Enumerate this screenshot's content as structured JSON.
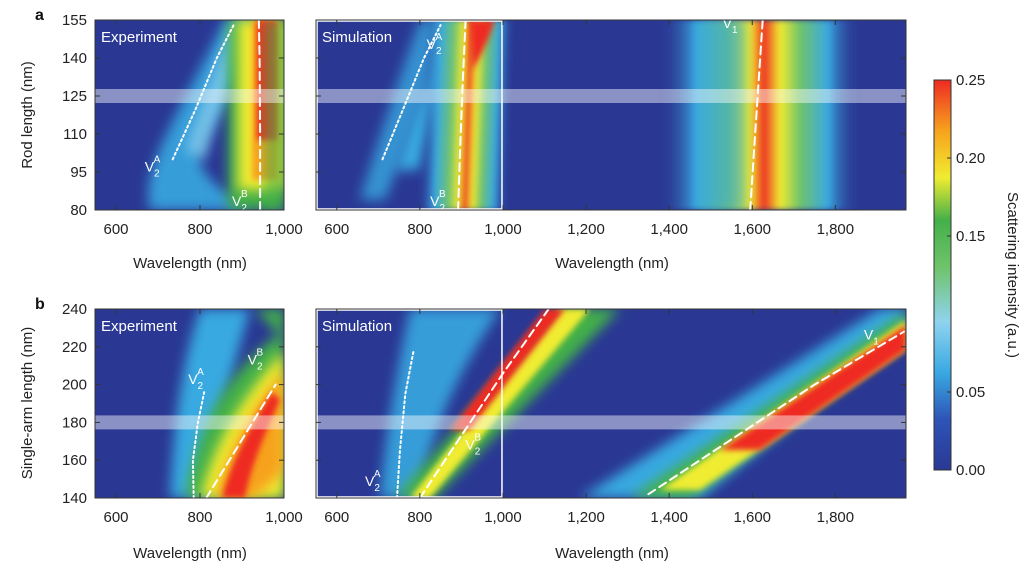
{
  "panels": {
    "a": "a",
    "b": "b"
  },
  "chart_data": [
    {
      "type": "heatmap",
      "panel": "a",
      "title": "Experiment",
      "xlabel": "Wavelength (nm)",
      "ylabel": "Rod length (nm)",
      "xlim": [
        550,
        1000
      ],
      "ylim": [
        80,
        155
      ],
      "xticks": [
        600,
        800,
        1000
      ],
      "xtick_labels": [
        "600",
        "800",
        "1,000"
      ],
      "yticks": [
        80,
        95,
        110,
        125,
        140,
        155
      ],
      "ytick_labels": [
        "80",
        "95",
        "110",
        "125",
        "140",
        "155"
      ],
      "highlight_band": 125,
      "modes": [
        {
          "name": "V2A",
          "label_main": "V",
          "label_sub": "2",
          "label_sup": "A",
          "style": "dotted",
          "x": [
            735,
            790,
            840,
            880
          ],
          "y": [
            100,
            120,
            140,
            153
          ]
        },
        {
          "name": "V2B",
          "label_main": "V",
          "label_sub": "2",
          "label_sup": "B",
          "style": "dashed",
          "x": [
            943,
            943,
            942,
            940
          ],
          "y": [
            80,
            110,
            140,
            155
          ]
        }
      ]
    },
    {
      "type": "heatmap",
      "panel": "a",
      "title": "Simulation",
      "xlabel": "Wavelength (nm)",
      "ylabel": "",
      "xlim": [
        550,
        1970
      ],
      "ylim": [
        80,
        155
      ],
      "xticks": [
        600,
        800,
        1000,
        1200,
        1400,
        1600,
        1800
      ],
      "xtick_labels": [
        "600",
        "800",
        "1,000",
        "1,200",
        "1,400",
        "1,600",
        "1,800"
      ],
      "highlight_band": 125,
      "zoom_box": {
        "x": [
          550,
          1000
        ]
      },
      "modes": [
        {
          "name": "V2A",
          "label_main": "V",
          "label_sub": "2",
          "label_sup": "A",
          "style": "dotted",
          "x": [
            710,
            760,
            810,
            850
          ],
          "y": [
            100,
            120,
            140,
            153
          ]
        },
        {
          "name": "V2B",
          "label_main": "V",
          "label_sub": "2",
          "label_sup": "B",
          "style": "dashed",
          "x": [
            892,
            897,
            903,
            910
          ],
          "y": [
            80,
            105,
            130,
            155
          ]
        },
        {
          "name": "V1",
          "label_main": "V",
          "label_sub": "1",
          "label_sup": "",
          "style": "dashed",
          "x": [
            1595,
            1605,
            1615,
            1625
          ],
          "y": [
            80,
            105,
            130,
            155
          ]
        }
      ]
    },
    {
      "type": "heatmap",
      "panel": "b",
      "title": "Experiment",
      "xlabel": "Wavelength (nm)",
      "ylabel": "Single-arm length (nm)",
      "xlim": [
        550,
        1000
      ],
      "ylim": [
        140,
        240
      ],
      "xticks": [
        600,
        800,
        1000
      ],
      "xtick_labels": [
        "600",
        "800",
        "1,000"
      ],
      "yticks": [
        140,
        160,
        180,
        200,
        220,
        240
      ],
      "ytick_labels": [
        "140",
        "160",
        "180",
        "200",
        "220",
        "240"
      ],
      "highlight_band": 180,
      "modes": [
        {
          "name": "V2A",
          "label_main": "V",
          "label_sub": "2",
          "label_sup": "A",
          "style": "dotted",
          "x": [
            785,
            783,
            795,
            810
          ],
          "y": [
            140,
            160,
            180,
            196
          ]
        },
        {
          "name": "V2B",
          "label_main": "V",
          "label_sub": "2",
          "label_sup": "B",
          "style": "dashed",
          "x": [
            815,
            870,
            925,
            980
          ],
          "y": [
            140,
            160,
            180,
            200
          ]
        }
      ]
    },
    {
      "type": "heatmap",
      "panel": "b",
      "title": "Simulation",
      "xlabel": "Wavelength (nm)",
      "ylabel": "",
      "xlim": [
        550,
        1970
      ],
      "ylim": [
        140,
        240
      ],
      "xticks": [
        600,
        800,
        1000,
        1200,
        1400,
        1600,
        1800
      ],
      "xtick_labels": [
        "600",
        "800",
        "1,000",
        "1,200",
        "1,400",
        "1,600",
        "1,800"
      ],
      "highlight_band": 180,
      "zoom_box": {
        "x": [
          550,
          1000
        ]
      },
      "modes": [
        {
          "name": "V2A",
          "label_main": "V",
          "label_sub": "2",
          "label_sup": "A",
          "style": "dotted",
          "x": [
            745,
            752,
            765,
            785
          ],
          "y": [
            140,
            165,
            195,
            218
          ]
        },
        {
          "name": "V2B",
          "label_main": "V",
          "label_sub": "2",
          "label_sup": "B",
          "style": "dashed",
          "x": [
            800,
            900,
            1000,
            1110
          ],
          "y": [
            140,
            173,
            206,
            240
          ]
        },
        {
          "name": "V1",
          "label_main": "V",
          "label_sub": "1",
          "label_sup": "",
          "style": "dashed",
          "x": [
            1350,
            1550,
            1750,
            1965
          ],
          "y": [
            142,
            171,
            200,
            228
          ]
        }
      ]
    }
  ],
  "colorbar": {
    "label": "Scattering intensity (a.u.)",
    "min": 0.0,
    "max": 0.25,
    "ticks": [
      0.0,
      0.05,
      0.15,
      0.2,
      0.25
    ],
    "tick_labels": [
      "0.00",
      "0.05",
      "0.15",
      "0.20",
      "0.25"
    ],
    "colors": [
      "#2a3894",
      "#2e54b8",
      "#39a9e1",
      "#8fd3ef",
      "#6fc36a",
      "#43b04a",
      "#f0ec30",
      "#f7a21d",
      "#ee2a23"
    ]
  }
}
